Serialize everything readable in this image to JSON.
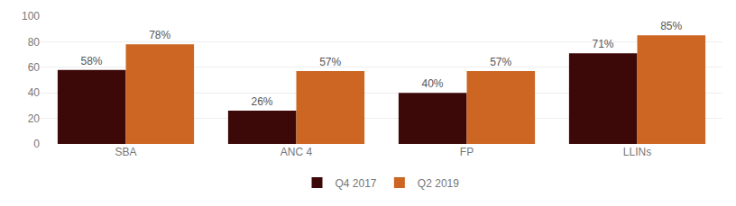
{
  "chart_data": {
    "type": "bar",
    "categories": [
      "SBA",
      "ANC 4",
      "FP",
      "LLINs"
    ],
    "series": [
      {
        "name": "Q4 2017",
        "color": "#3D0808",
        "values": [
          58,
          26,
          40,
          71
        ],
        "value_labels": [
          "58%",
          "26%",
          "40%",
          "71%"
        ]
      },
      {
        "name": "Q2 2019",
        "color": "#CC6622",
        "values": [
          78,
          57,
          57,
          85
        ],
        "value_labels": [
          "78%",
          "57%",
          "57%",
          "85%"
        ]
      }
    ],
    "ylim": [
      0,
      100
    ],
    "yticks": [
      0,
      20,
      40,
      60,
      80,
      100
    ],
    "grid": true,
    "legend": "bottom",
    "data_labels": true
  }
}
